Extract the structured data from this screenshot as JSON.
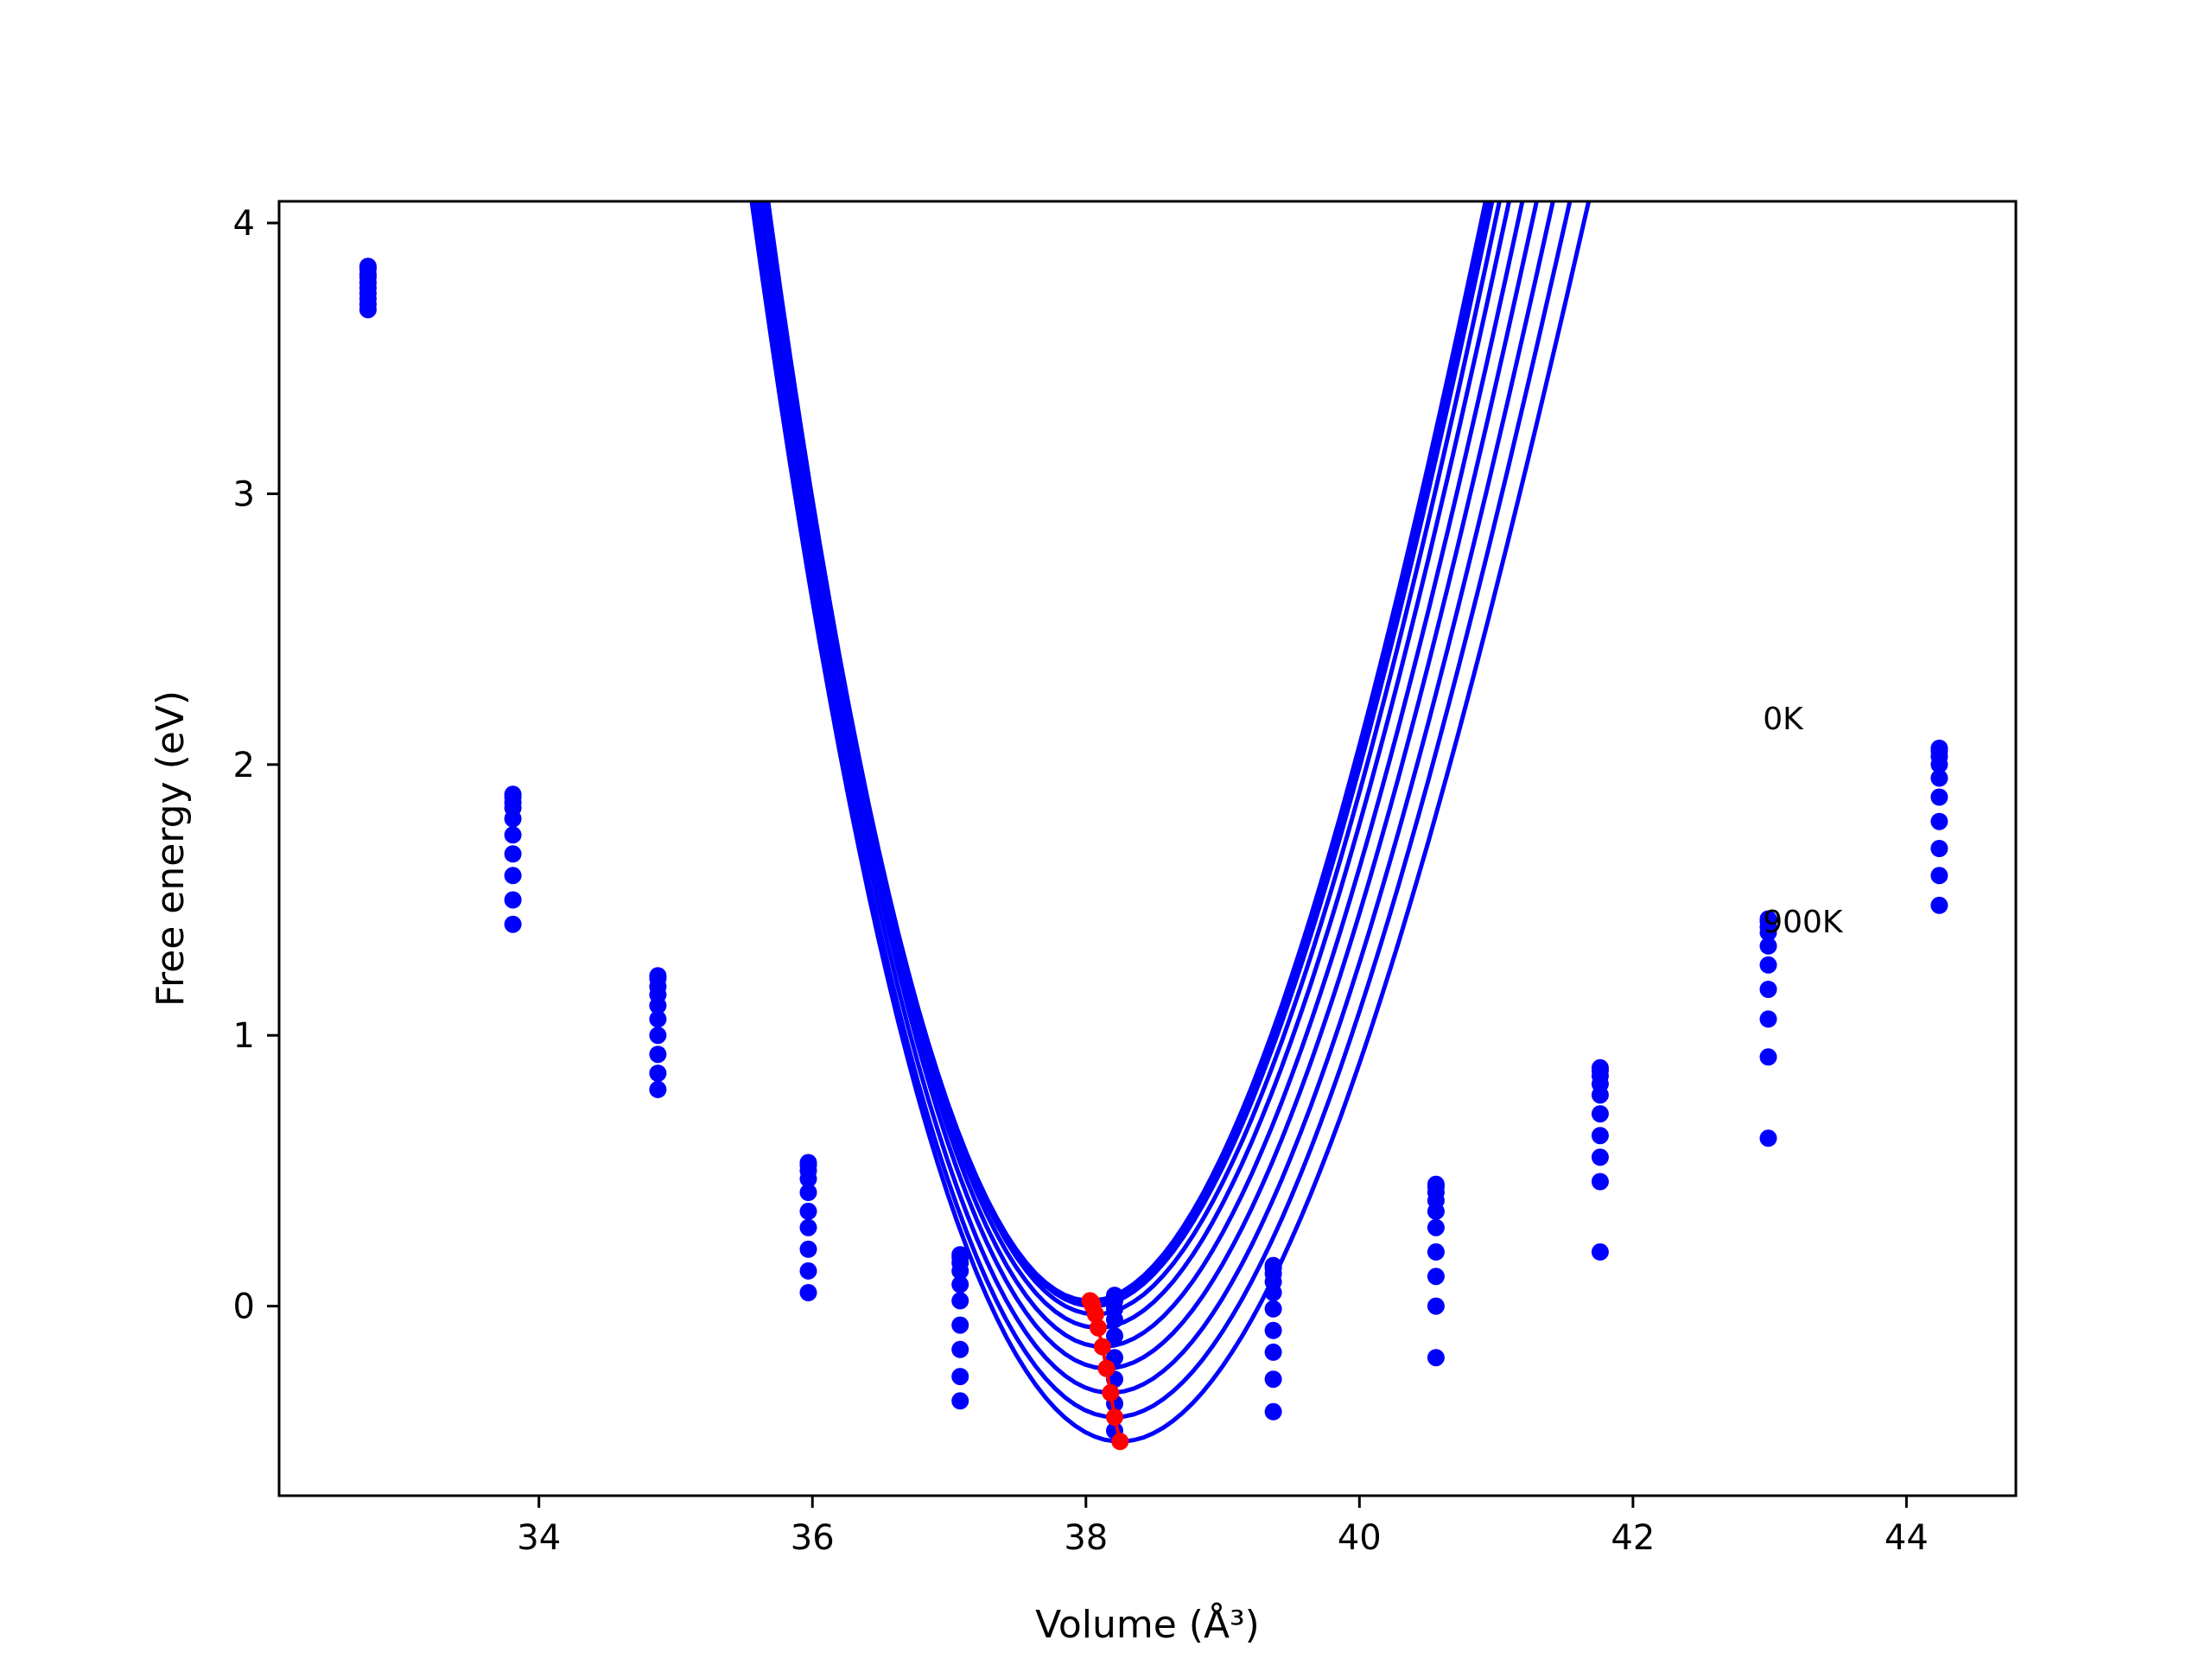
{
  "chart_data": {
    "type": "scatter",
    "title": "",
    "xlabel": "Volume ($Å^3$)",
    "xlabel_display": "Volume (Å³)",
    "ylabel": "Free energy (eV)",
    "xlim": [
      32.1,
      44.8
    ],
    "ylim": [
      -0.7,
      4.08
    ],
    "xticks": [
      34,
      36,
      38,
      40,
      42,
      44
    ],
    "yticks": [
      0,
      1,
      2,
      3,
      4
    ],
    "grid": false,
    "legend": "none",
    "colors": {
      "curves": "#0000ff",
      "points": "#0000ff",
      "minima": "#ff0000"
    },
    "annotations": [
      {
        "text": "0K",
        "x": 42.95,
        "y": 2.13
      },
      {
        "text": "900K",
        "x": 42.95,
        "y": 1.38
      }
    ],
    "volumes": [
      32.75,
      33.81,
      34.87,
      35.97,
      37.08,
      38.21,
      39.37,
      40.56,
      41.76,
      42.99,
      44.24
    ],
    "series": [
      {
        "V0": 38.03,
        "E0": 0.02,
        "B": 1.24,
        "values": [
          3.84,
          1.89,
          1.22,
          0.53,
          0.19,
          0.04,
          0.15,
          0.45,
          0.88,
          1.43,
          2.06
        ]
      },
      {
        "V0": 38.04,
        "E0": 0.015,
        "B": 1.235,
        "values": [
          3.83,
          1.88,
          1.21,
          0.52,
          0.18,
          0.035,
          0.14,
          0.44,
          0.87,
          1.42,
          2.05
        ]
      },
      {
        "V0": 38.05,
        "E0": 0.0,
        "B": 1.225,
        "values": [
          3.81,
          1.86,
          1.18,
          0.5,
          0.16,
          0.02,
          0.12,
          0.42,
          0.85,
          1.4,
          2.03
        ]
      },
      {
        "V0": 38.07,
        "E0": -0.03,
        "B": 1.21,
        "values": [
          3.8,
          1.84,
          1.15,
          0.47,
          0.13,
          -0.01,
          0.09,
          0.39,
          0.82,
          1.38,
          2.0
        ]
      },
      {
        "V0": 38.09,
        "E0": -0.08,
        "B": 1.19,
        "values": [
          3.78,
          1.8,
          1.11,
          0.42,
          0.08,
          -0.05,
          0.05,
          0.35,
          0.78,
          1.33,
          1.95
        ]
      },
      {
        "V0": 38.12,
        "E0": -0.15,
        "B": 1.165,
        "values": [
          3.76,
          1.74,
          1.06,
          0.35,
          0.02,
          -0.11,
          -0.01,
          0.29,
          0.71,
          1.26,
          1.88
        ]
      },
      {
        "V0": 38.15,
        "E0": -0.23,
        "B": 1.14,
        "values": [
          3.74,
          1.67,
          1.0,
          0.29,
          -0.07,
          -0.19,
          -0.09,
          0.2,
          0.63,
          1.17,
          1.79
        ]
      },
      {
        "V0": 38.18,
        "E0": -0.32,
        "B": 1.11,
        "values": [
          3.72,
          1.59,
          0.93,
          0.21,
          -0.16,
          -0.27,
          -0.17,
          0.11,
          0.55,
          1.06,
          1.69
        ]
      },
      {
        "V0": 38.21,
        "E0": -0.41,
        "B": 1.08,
        "values": [
          3.7,
          1.5,
          0.86,
          0.13,
          -0.26,
          -0.36,
          -0.27,
          0.0,
          0.46,
          0.92,
          1.59
        ]
      },
      {
        "V0": 38.25,
        "E0": -0.5,
        "B": 1.05,
        "values": [
          3.68,
          1.41,
          0.8,
          0.05,
          -0.35,
          -0.46,
          -0.39,
          -0.19,
          0.2,
          0.62,
          1.48
        ]
      }
    ],
    "minima": {
      "x": [
        38.03,
        38.04,
        38.05,
        38.07,
        38.09,
        38.12,
        38.15,
        38.18,
        38.21,
        38.25
      ],
      "y": [
        0.02,
        0.015,
        0.0,
        -0.03,
        -0.08,
        -0.15,
        -0.23,
        -0.32,
        -0.41,
        -0.5
      ]
    }
  }
}
